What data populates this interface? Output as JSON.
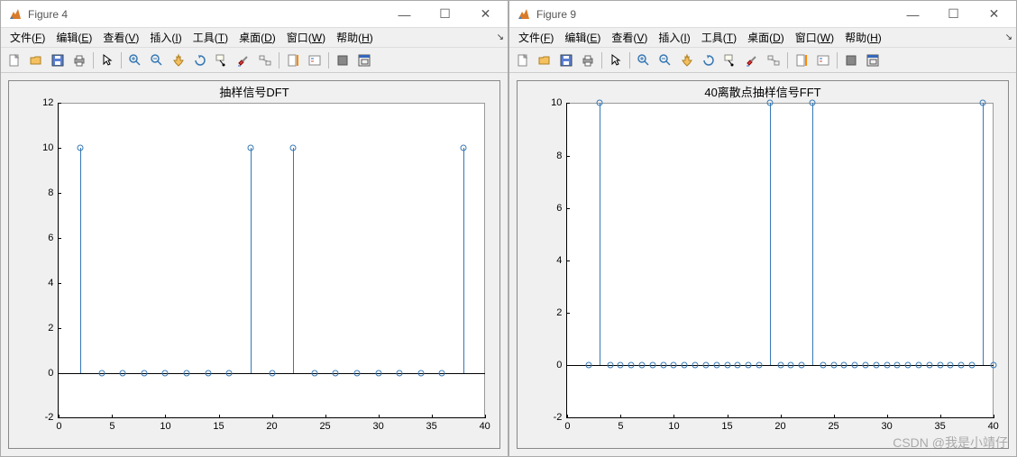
{
  "colors": {
    "stem": "#3678b5",
    "bg": "#f0f0f0",
    "axes_bg": "#ffffff"
  },
  "menus": [
    "文件(F)",
    "编辑(E)",
    "查看(V)",
    "插入(I)",
    "工具(T)",
    "桌面(D)",
    "窗口(W)",
    "帮助(H)"
  ],
  "watermark": "CSDN @我是小靖仔",
  "windows": [
    {
      "title": "Figure 4",
      "chart": {
        "type": "stem",
        "title": "抽样信号DFT",
        "xlim": [
          0,
          40
        ],
        "ylim": [
          -2,
          12
        ],
        "xticks": [
          0,
          5,
          10,
          15,
          20,
          25,
          30,
          35,
          40
        ],
        "yticks": [
          -2,
          0,
          2,
          4,
          6,
          8,
          10,
          12
        ],
        "x": [
          2,
          4,
          6,
          8,
          10,
          12,
          14,
          16,
          18,
          20,
          22,
          24,
          26,
          28,
          30,
          32,
          34,
          36,
          38
        ],
        "y": [
          10,
          0,
          0,
          0,
          0,
          0,
          0,
          0,
          10,
          0,
          10,
          0,
          0,
          0,
          0,
          0,
          0,
          0,
          10
        ]
      }
    },
    {
      "title": "Figure 9",
      "chart": {
        "type": "stem",
        "title": "40离散点抽样信号FFT",
        "xlim": [
          0,
          40
        ],
        "ylim": [
          -2,
          10
        ],
        "xticks": [
          0,
          5,
          10,
          15,
          20,
          25,
          30,
          35,
          40
        ],
        "yticks": [
          -2,
          0,
          2,
          4,
          6,
          8,
          10
        ],
        "x": [
          2,
          3,
          4,
          5,
          6,
          7,
          8,
          9,
          10,
          11,
          12,
          13,
          14,
          15,
          16,
          17,
          18,
          19,
          20,
          21,
          22,
          23,
          24,
          25,
          26,
          27,
          28,
          29,
          30,
          31,
          32,
          33,
          34,
          35,
          36,
          37,
          38,
          39,
          40
        ],
        "y": [
          0,
          10,
          0,
          0,
          0,
          0,
          0,
          0,
          0,
          0,
          0,
          0,
          0,
          0,
          0,
          0,
          0,
          10,
          0,
          0,
          0,
          10,
          0,
          0,
          0,
          0,
          0,
          0,
          0,
          0,
          0,
          0,
          0,
          0,
          0,
          0,
          0,
          10,
          0
        ]
      }
    }
  ]
}
